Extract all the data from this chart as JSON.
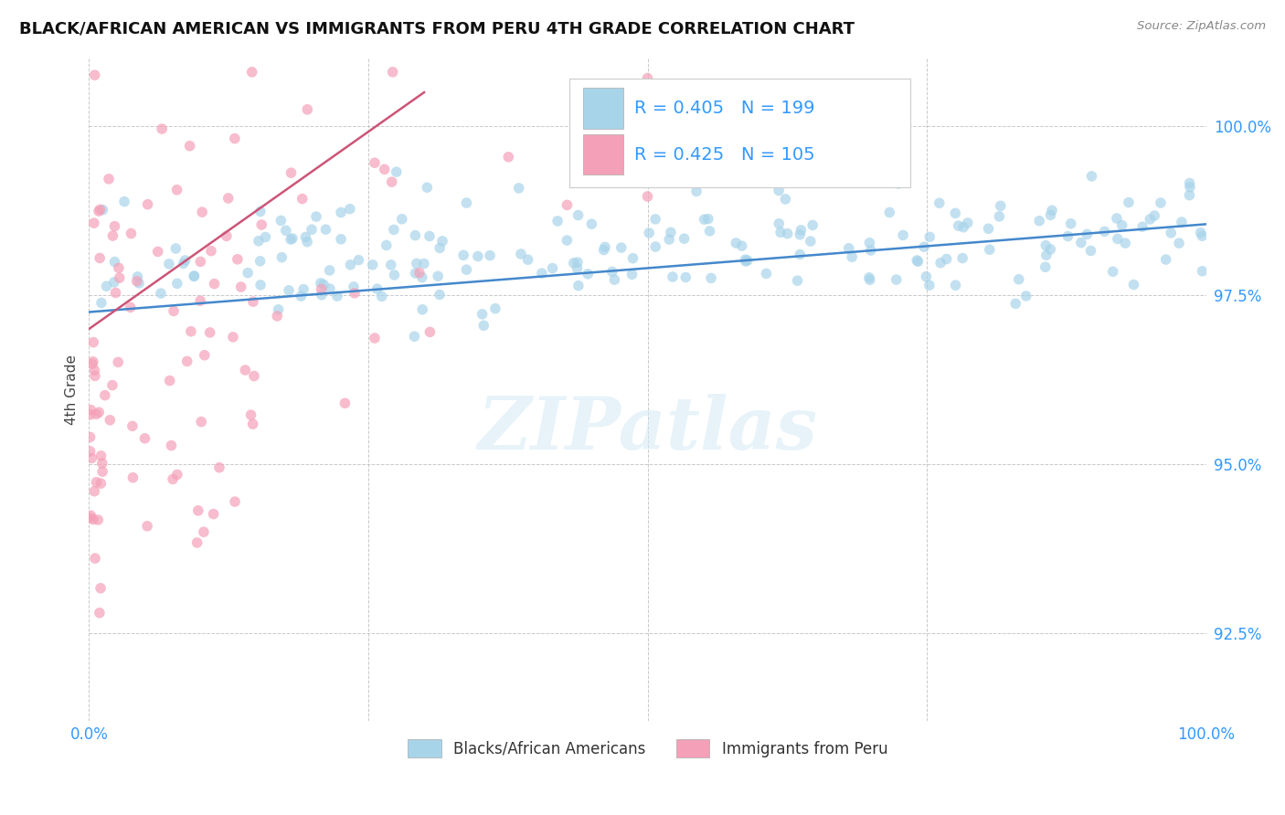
{
  "title": "BLACK/AFRICAN AMERICAN VS IMMIGRANTS FROM PERU 4TH GRADE CORRELATION CHART",
  "source": "Source: ZipAtlas.com",
  "ylabel": "4th Grade",
  "yticks": [
    92.5,
    95.0,
    97.5,
    100.0
  ],
  "ytick_labels": [
    "92.5%",
    "95.0%",
    "97.5%",
    "100.0%"
  ],
  "xmin": 0.0,
  "xmax": 100.0,
  "ymin": 91.2,
  "ymax": 101.0,
  "blue_R": 0.405,
  "blue_N": 199,
  "pink_R": 0.425,
  "pink_N": 105,
  "blue_color": "#a8d4ea",
  "pink_color": "#f4a0b8",
  "blue_line_color": "#4488cc",
  "pink_line_color": "#cc5577",
  "legend_label_blue": "Blacks/African Americans",
  "legend_label_pink": "Immigrants from Peru",
  "watermark": "ZIPatlas",
  "title_fontsize": 13,
  "label_color": "#3399ff",
  "background_color": "#ffffff",
  "grid_color": "#bbbbbb"
}
